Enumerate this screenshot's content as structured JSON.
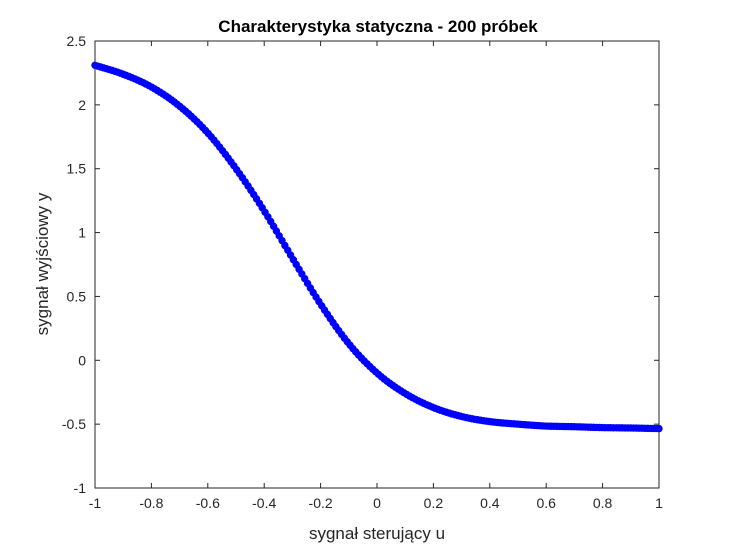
{
  "chart_data": {
    "type": "scatter",
    "title": "Charakterystyka statyczna - 200 próbek",
    "xlabel": "sygnał sterujący u",
    "ylabel": "sygnał wyjściowy y",
    "xlim": [
      -1,
      1
    ],
    "ylim": [
      -1,
      2.5
    ],
    "xticks": [
      -1,
      -0.8,
      -0.6,
      -0.4,
      -0.2,
      0,
      0.2,
      0.4,
      0.6,
      0.8,
      1
    ],
    "xtick_labels": [
      "-1",
      "-0.8",
      "-0.6",
      "-0.4",
      "-0.2",
      "0",
      "0.2",
      "0.4",
      "0.6",
      "0.8",
      "1"
    ],
    "yticks": [
      -1,
      -0.5,
      0,
      0.5,
      1,
      1.5,
      2,
      2.5
    ],
    "ytick_labels": [
      "-1",
      "-0.5",
      "0",
      "0.5",
      "1",
      "1.5",
      "2",
      "2.5"
    ],
    "grid": false,
    "marker_color": "#0000ff",
    "series": [
      {
        "x": [
          -1.0,
          -0.9,
          -0.8,
          -0.7,
          -0.6,
          -0.5,
          -0.4,
          -0.3,
          -0.2,
          -0.1,
          0.0,
          0.1,
          0.2,
          0.3,
          0.4,
          0.5,
          0.6,
          0.7,
          0.8,
          0.9,
          1.0
        ],
        "y": [
          2.31,
          2.24,
          2.14,
          1.99,
          1.78,
          1.5,
          1.17,
          0.8,
          0.44,
          0.13,
          -0.1,
          -0.26,
          -0.37,
          -0.44,
          -0.48,
          -0.5,
          -0.515,
          -0.52,
          -0.527,
          -0.53,
          -0.535
        ]
      }
    ]
  }
}
